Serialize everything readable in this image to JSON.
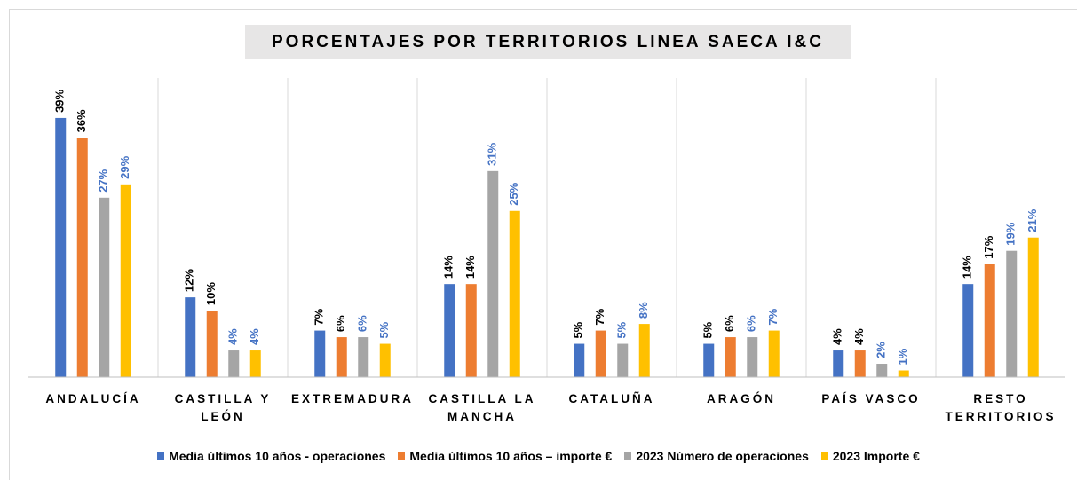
{
  "chart_data": {
    "type": "bar",
    "title": "PORCENTAJES POR TERRITORIOS LINEA SAECA I&C",
    "categories": [
      "ANDALUCÍA",
      "CASTILLA Y LEÓN",
      "EXTREMADURA",
      "CASTILLA LA MANCHA",
      "CATALUÑA",
      "ARAGÓN",
      "PAÍS VASCO",
      "RESTO TERRITORIOS"
    ],
    "series": [
      {
        "name": "Media últimos 10 años - operaciones",
        "color": "#4472c4",
        "label_color": "#000000",
        "values": [
          39,
          12,
          7,
          14,
          5,
          5,
          4,
          14
        ],
        "value_labels": [
          "39%",
          "12%",
          "7%",
          "14%",
          "5%",
          "5%",
          "4%",
          "14%"
        ]
      },
      {
        "name": "Media últimos 10 años – importe €",
        "color": "#ed7d31",
        "label_color": "#000000",
        "values": [
          36,
          10,
          6,
          14,
          7,
          6,
          4,
          17
        ],
        "value_labels": [
          "36%",
          "10%",
          "6%",
          "14%",
          "7%",
          "6%",
          "4%",
          "17%"
        ]
      },
      {
        "name": "2023 Número de operaciones",
        "color": "#a5a5a5",
        "label_color": "#4472c4",
        "values": [
          27,
          4,
          6,
          31,
          5,
          6,
          2,
          19
        ],
        "value_labels": [
          "27%",
          "4%",
          "6%",
          "31%",
          "5%",
          "6%",
          "2%",
          "19%"
        ]
      },
      {
        "name": "2023 Importe €",
        "color": "#ffc000",
        "label_color": "#4472c4",
        "values": [
          29,
          4,
          5,
          25,
          8,
          7,
          1,
          21
        ],
        "value_labels": [
          "29%",
          "4%",
          "5%",
          "25%",
          "8%",
          "7%",
          "1%",
          "21%"
        ]
      }
    ],
    "ylim": [
      0,
      45
    ],
    "legend": "bottom"
  }
}
